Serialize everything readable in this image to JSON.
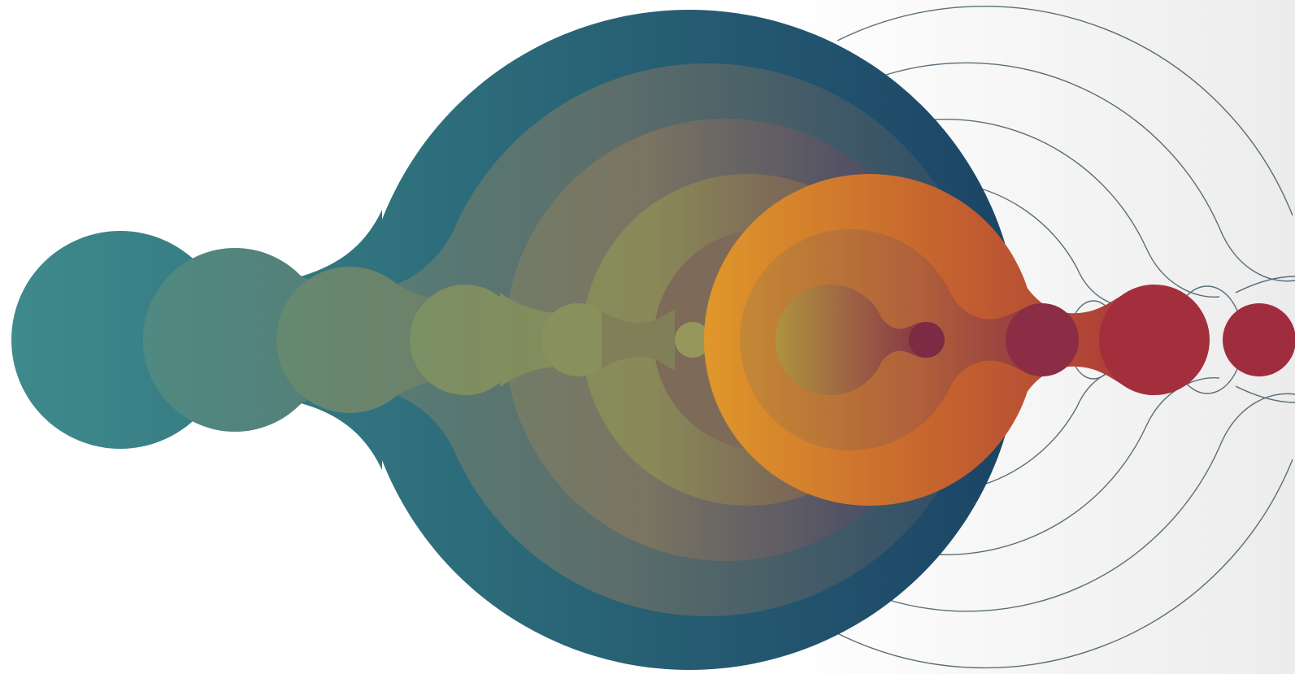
{
  "artwork": {
    "description_type": "abstract-graphic",
    "colors": {
      "teal": "#3f8a8c",
      "deep_teal": "#2b6b7a",
      "navy": "#1f4766",
      "olive": "#8a9560",
      "orange": "#e0982a",
      "burnt_orange": "#c4612f",
      "crimson": "#a02d3d",
      "plum": "#7d2a45",
      "outline": "#5a6e78",
      "background": "#ffffff",
      "background_fade": "#ececec"
    },
    "layers": {
      "teal_chain_count": 6,
      "orange_chain_count": 3,
      "outline_chain_count": 4,
      "trailing_dots_count": 2
    }
  }
}
